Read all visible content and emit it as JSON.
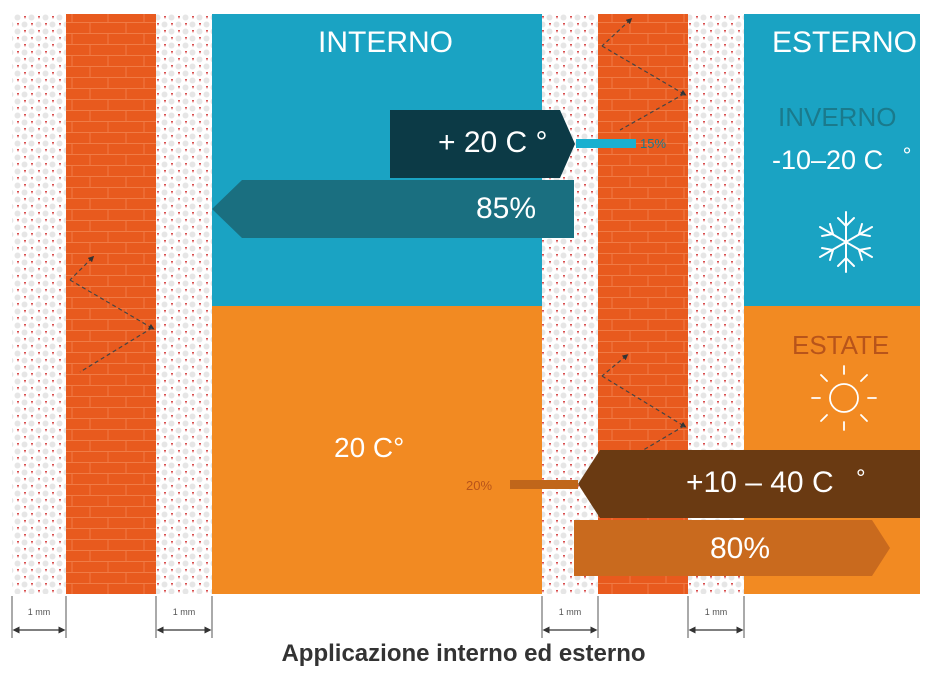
{
  "labels": {
    "interno": "INTERNO",
    "esterno": "ESTERNO",
    "inverno": "INVERNO",
    "winter_temp": "-10–20 C",
    "winter_degree": "°",
    "estate": "ESTATE",
    "inside_winter_temp": "+ 20 C °",
    "winter_retained": "85%",
    "winter_loss": "15%",
    "inside_summer_temp": "20 C°",
    "summer_gain": "20%",
    "summer_temp": "+10 – 40 C",
    "summer_degree": "°",
    "summer_reflected": "80%",
    "thickness": "1 mm",
    "caption": "Applicazione interno ed esterno"
  },
  "colors": {
    "interior_winter": "#1aa3c3",
    "interior_summer": "#f28a22",
    "brick": "#e85a1e",
    "coating_dots": "#e8e8e8",
    "coating_marks": "#d12c2c",
    "winter_badge": "#0c3a46",
    "winter_arrow": "#1a7a8c",
    "summer_badge": "#6a3a12",
    "summer_arrow": "#c0661a",
    "winter_text": "#1a7a8c",
    "summer_text": "#b8541a"
  },
  "icons": {
    "winter": "snowflake-icon",
    "summer": "sun-icon",
    "dimension": "double-arrow-icon"
  }
}
